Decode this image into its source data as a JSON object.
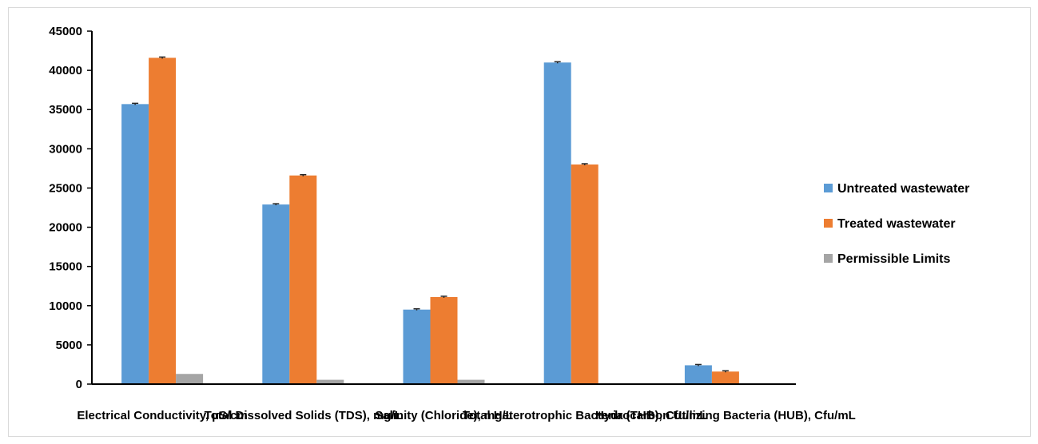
{
  "chart_data": {
    "type": "bar",
    "title": "",
    "xlabel": "",
    "ylabel": "",
    "ylim": [
      0,
      45000
    ],
    "yticks": [
      0,
      5000,
      10000,
      15000,
      20000,
      25000,
      30000,
      35000,
      40000,
      45000
    ],
    "ytick_labels": [
      "0",
      "5000",
      "10000",
      "15000",
      "20000",
      "25000",
      "30000",
      "35000",
      "40000",
      "45000"
    ],
    "grid": false,
    "legend_position": "right",
    "categories": [
      "Electrical Conductivity, µS/cm",
      "Total Dissolved Solids (TDS), mg/L",
      "Salinity (Chloride), mg/L",
      "Total Heterotrophic Bacteria (THB), Cfu/mL",
      "Hydrocarbon Utilizing Bacteria (HUB), Cfu/mL"
    ],
    "series": [
      {
        "name": "Untreated wastewater",
        "color": "#5b9bd5",
        "values": [
          35700,
          22900,
          9500,
          41000,
          2400
        ]
      },
      {
        "name": "Treated wastewater",
        "color": "#ed7d31",
        "values": [
          41600,
          26600,
          11100,
          28000,
          1600
        ]
      },
      {
        "name": "Permissible Limits",
        "color": "#a5a5a5",
        "values": [
          1300,
          550,
          550,
          0,
          0
        ]
      }
    ],
    "error_bars": [
      [
        100,
        100,
        100,
        100,
        100
      ],
      [
        100,
        100,
        100,
        100,
        100
      ],
      [
        0,
        0,
        0,
        0,
        0
      ]
    ]
  }
}
